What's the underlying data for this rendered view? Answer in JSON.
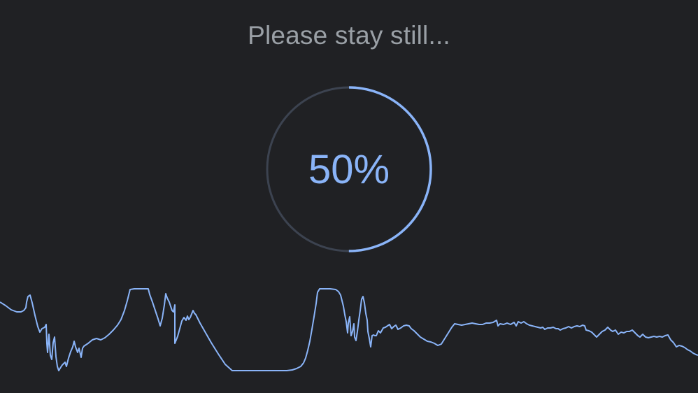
{
  "status": {
    "message": "Please stay still...",
    "progress_text": "50%",
    "progress_fraction": 0.5
  },
  "colors": {
    "background": "#202124",
    "accent": "#8ab4f8",
    "track": "#3c4350",
    "message": "#9aa0a6"
  },
  "icons": {
    "progress": "circular-progress-ring",
    "signal": "signal-waveform"
  }
}
